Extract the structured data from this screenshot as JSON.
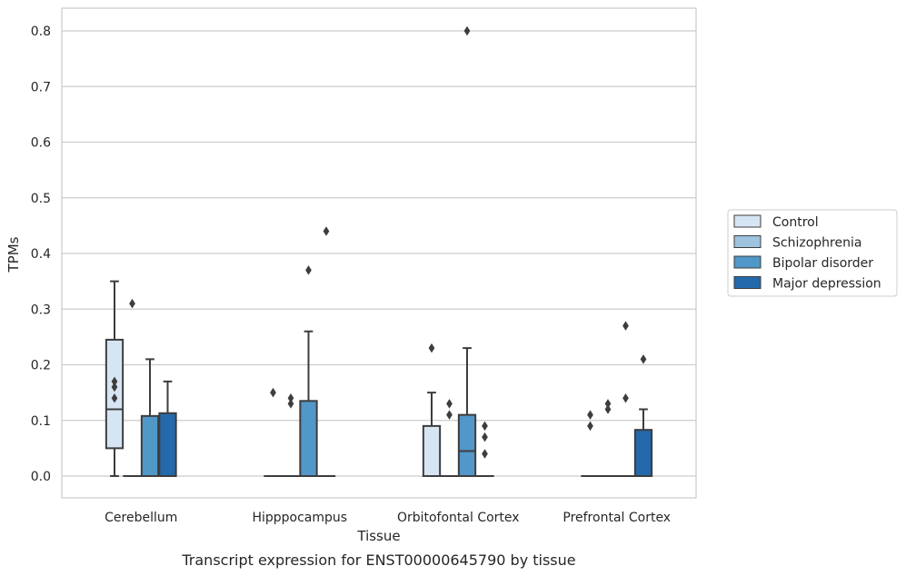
{
  "chart_data": {
    "type": "boxplot",
    "title": "",
    "caption": "Transcript expression for ENST00000645790 by tissue",
    "xlabel": "Tissue",
    "ylabel": "TPMs",
    "ylim": [
      -0.04,
      0.84
    ],
    "yticks": [
      0.0,
      0.1,
      0.2,
      0.3,
      0.4,
      0.5,
      0.6,
      0.7,
      0.8
    ],
    "ytick_labels": [
      "0.0",
      "0.1",
      "0.2",
      "0.3",
      "0.4",
      "0.5",
      "0.6",
      "0.7",
      "0.8"
    ],
    "grid": "horizontal",
    "legend_position": "right",
    "categories": [
      "Cerebellum",
      "Hipppocampus",
      "Orbitofontal Cortex",
      "Prefrontal Cortex"
    ],
    "series": [
      {
        "name": "Control",
        "color": "#d6e5f3",
        "boxes": [
          {
            "q1": 0.05,
            "median": 0.12,
            "q3": 0.245,
            "whisker_low": 0.0,
            "whisker_high": 0.35,
            "outliers": [
              0.14,
              0.16,
              0.17
            ]
          },
          {
            "q1": 0.0,
            "median": 0.0,
            "q3": 0.0,
            "whisker_low": 0.0,
            "whisker_high": 0.0,
            "outliers": [
              0.15
            ]
          },
          {
            "q1": 0.0,
            "median": 0.0,
            "q3": 0.09,
            "whisker_low": 0.0,
            "whisker_high": 0.15,
            "outliers": [
              0.23
            ]
          },
          {
            "q1": 0.0,
            "median": 0.0,
            "q3": 0.0,
            "whisker_low": 0.0,
            "whisker_high": 0.0,
            "outliers": [
              0.09,
              0.11
            ]
          }
        ]
      },
      {
        "name": "Schizophrenia",
        "color": "#9dc3de",
        "boxes": [
          {
            "q1": 0.0,
            "median": 0.0,
            "q3": 0.0,
            "whisker_low": 0.0,
            "whisker_high": 0.0,
            "outliers": [
              0.31
            ]
          },
          {
            "q1": 0.0,
            "median": 0.0,
            "q3": 0.0,
            "whisker_low": 0.0,
            "whisker_high": 0.0,
            "outliers": [
              0.13,
              0.14
            ]
          },
          {
            "q1": 0.0,
            "median": 0.0,
            "q3": 0.0,
            "whisker_low": 0.0,
            "whisker_high": 0.0,
            "outliers": [
              0.11,
              0.13
            ]
          },
          {
            "q1": 0.0,
            "median": 0.0,
            "q3": 0.0,
            "whisker_low": 0.0,
            "whisker_high": 0.0,
            "outliers": [
              0.12,
              0.13
            ]
          }
        ]
      },
      {
        "name": "Bipolar disorder",
        "color": "#5197c8",
        "boxes": [
          {
            "q1": 0.0,
            "median": 0.0,
            "q3": 0.108,
            "whisker_low": 0.0,
            "whisker_high": 0.21,
            "outliers": []
          },
          {
            "q1": 0.0,
            "median": 0.0,
            "q3": 0.135,
            "whisker_low": 0.0,
            "whisker_high": 0.26,
            "outliers": [
              0.37
            ]
          },
          {
            "q1": 0.0,
            "median": 0.045,
            "q3": 0.11,
            "whisker_low": 0.0,
            "whisker_high": 0.23,
            "outliers": [
              0.8
            ]
          },
          {
            "q1": 0.0,
            "median": 0.0,
            "q3": 0.0,
            "whisker_low": 0.0,
            "whisker_high": 0.0,
            "outliers": [
              0.14,
              0.27
            ]
          }
        ]
      },
      {
        "name": "Major depression",
        "color": "#2469ab",
        "boxes": [
          {
            "q1": 0.0,
            "median": 0.0,
            "q3": 0.113,
            "whisker_low": 0.0,
            "whisker_high": 0.17,
            "outliers": []
          },
          {
            "q1": 0.0,
            "median": 0.0,
            "q3": 0.0,
            "whisker_low": 0.0,
            "whisker_high": 0.0,
            "outliers": [
              0.44
            ]
          },
          {
            "q1": 0.0,
            "median": 0.0,
            "q3": 0.0,
            "whisker_low": 0.0,
            "whisker_high": 0.0,
            "outliers": [
              0.04,
              0.07,
              0.09
            ]
          },
          {
            "q1": 0.0,
            "median": 0.0,
            "q3": 0.083,
            "whisker_low": 0.0,
            "whisker_high": 0.12,
            "outliers": [
              0.21
            ]
          }
        ]
      }
    ]
  }
}
